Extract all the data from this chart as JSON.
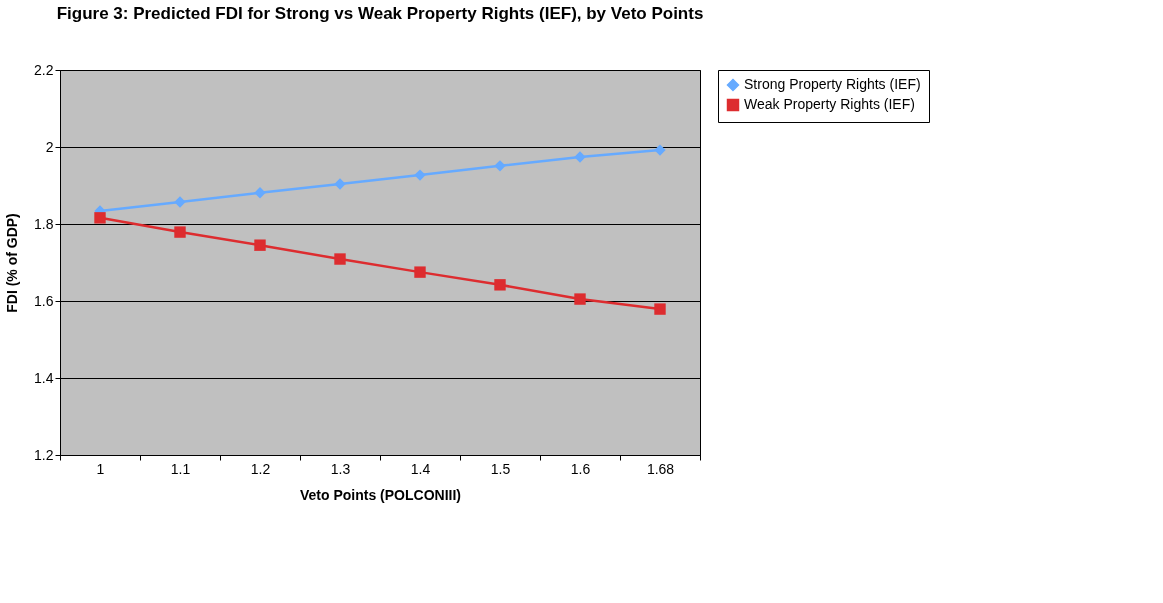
{
  "chart_data": {
    "type": "line",
    "title": "Figure 3:  Predicted FDI for Strong vs Weak Property Rights (IEF), by Veto Points",
    "xlabel": "Veto Points (POLCONIII)",
    "ylabel": "FDI (% of GDP)",
    "categories": [
      "1",
      "1.1",
      "1.2",
      "1.3",
      "1.4",
      "1.5",
      "1.6",
      "1.68"
    ],
    "series": [
      {
        "name": "Strong Property Rights (IEF)",
        "color": "#66aaff",
        "marker": "diamond",
        "values": [
          1.834,
          1.857,
          1.881,
          1.904,
          1.927,
          1.951,
          1.974,
          1.992
        ]
      },
      {
        "name": "Weak Property Rights (IEF)",
        "color": "#dd2c2f",
        "marker": "square",
        "values": [
          1.816,
          1.779,
          1.745,
          1.709,
          1.675,
          1.642,
          1.605,
          1.579
        ]
      }
    ],
    "ylim": [
      1.2,
      2.2
    ],
    "yticks": [
      1.2,
      1.4,
      1.6,
      1.8,
      2,
      2.2
    ],
    "grid": "y",
    "legend": "right"
  }
}
